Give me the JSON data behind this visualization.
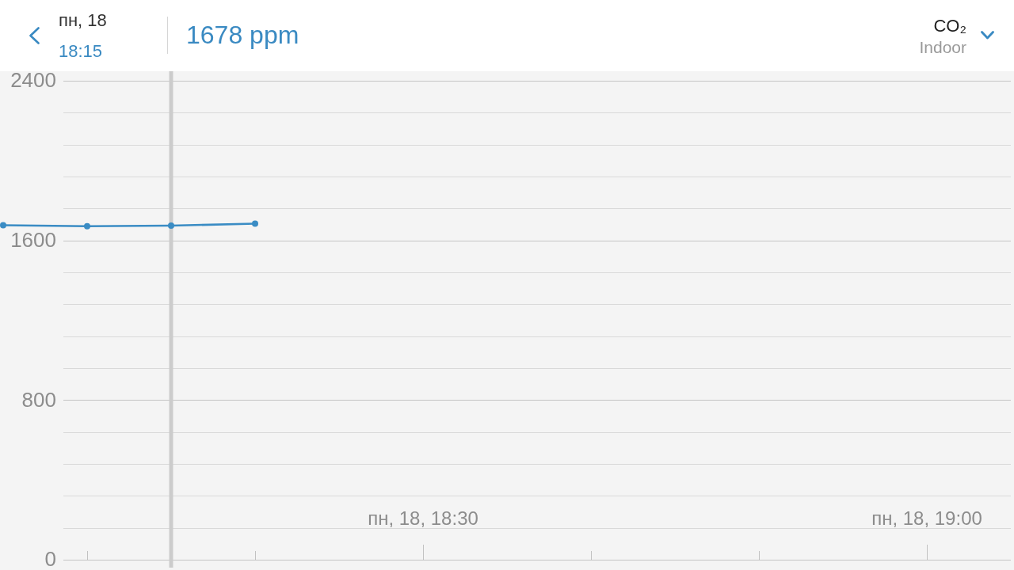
{
  "chart_data": {
    "type": "line",
    "title": "CO₂",
    "subtitle": "Indoor",
    "annotations": [
      "пн, 18",
      "18:15",
      "1678 ppm"
    ],
    "categories": [
      null,
      null,
      null,
      null,
      null,
      "пн, 18, 18:30",
      null,
      null,
      null,
      null,
      null,
      "пн, 18, 19:00",
      null
    ],
    "series": [
      {
        "color": "#3a8cc4",
        "values": [
          1680,
          1675,
          1678,
          1688,
          null,
          null,
          null,
          null,
          null,
          null,
          null,
          null,
          null
        ]
      }
    ],
    "ylim": [
      0,
      2400
    ],
    "yticks": [
      0,
      {
        "value": 160,
        "label": null
      },
      {
        "value": 320,
        "label": null
      },
      {
        "value": 480,
        "label": null
      },
      {
        "value": 640,
        "label": null
      },
      800,
      {
        "value": 960,
        "label": null
      },
      {
        "value": 1120,
        "label": null
      },
      {
        "value": 1280,
        "label": null
      },
      {
        "value": 1440,
        "label": null
      },
      1600,
      {
        "value": 1760,
        "label": null
      },
      {
        "value": 1920,
        "label": null
      },
      {
        "value": 2080,
        "label": null
      },
      {
        "value": 2240,
        "label": null
      },
      2400
    ],
    "grid": "y",
    "marker": "circle"
  }
}
